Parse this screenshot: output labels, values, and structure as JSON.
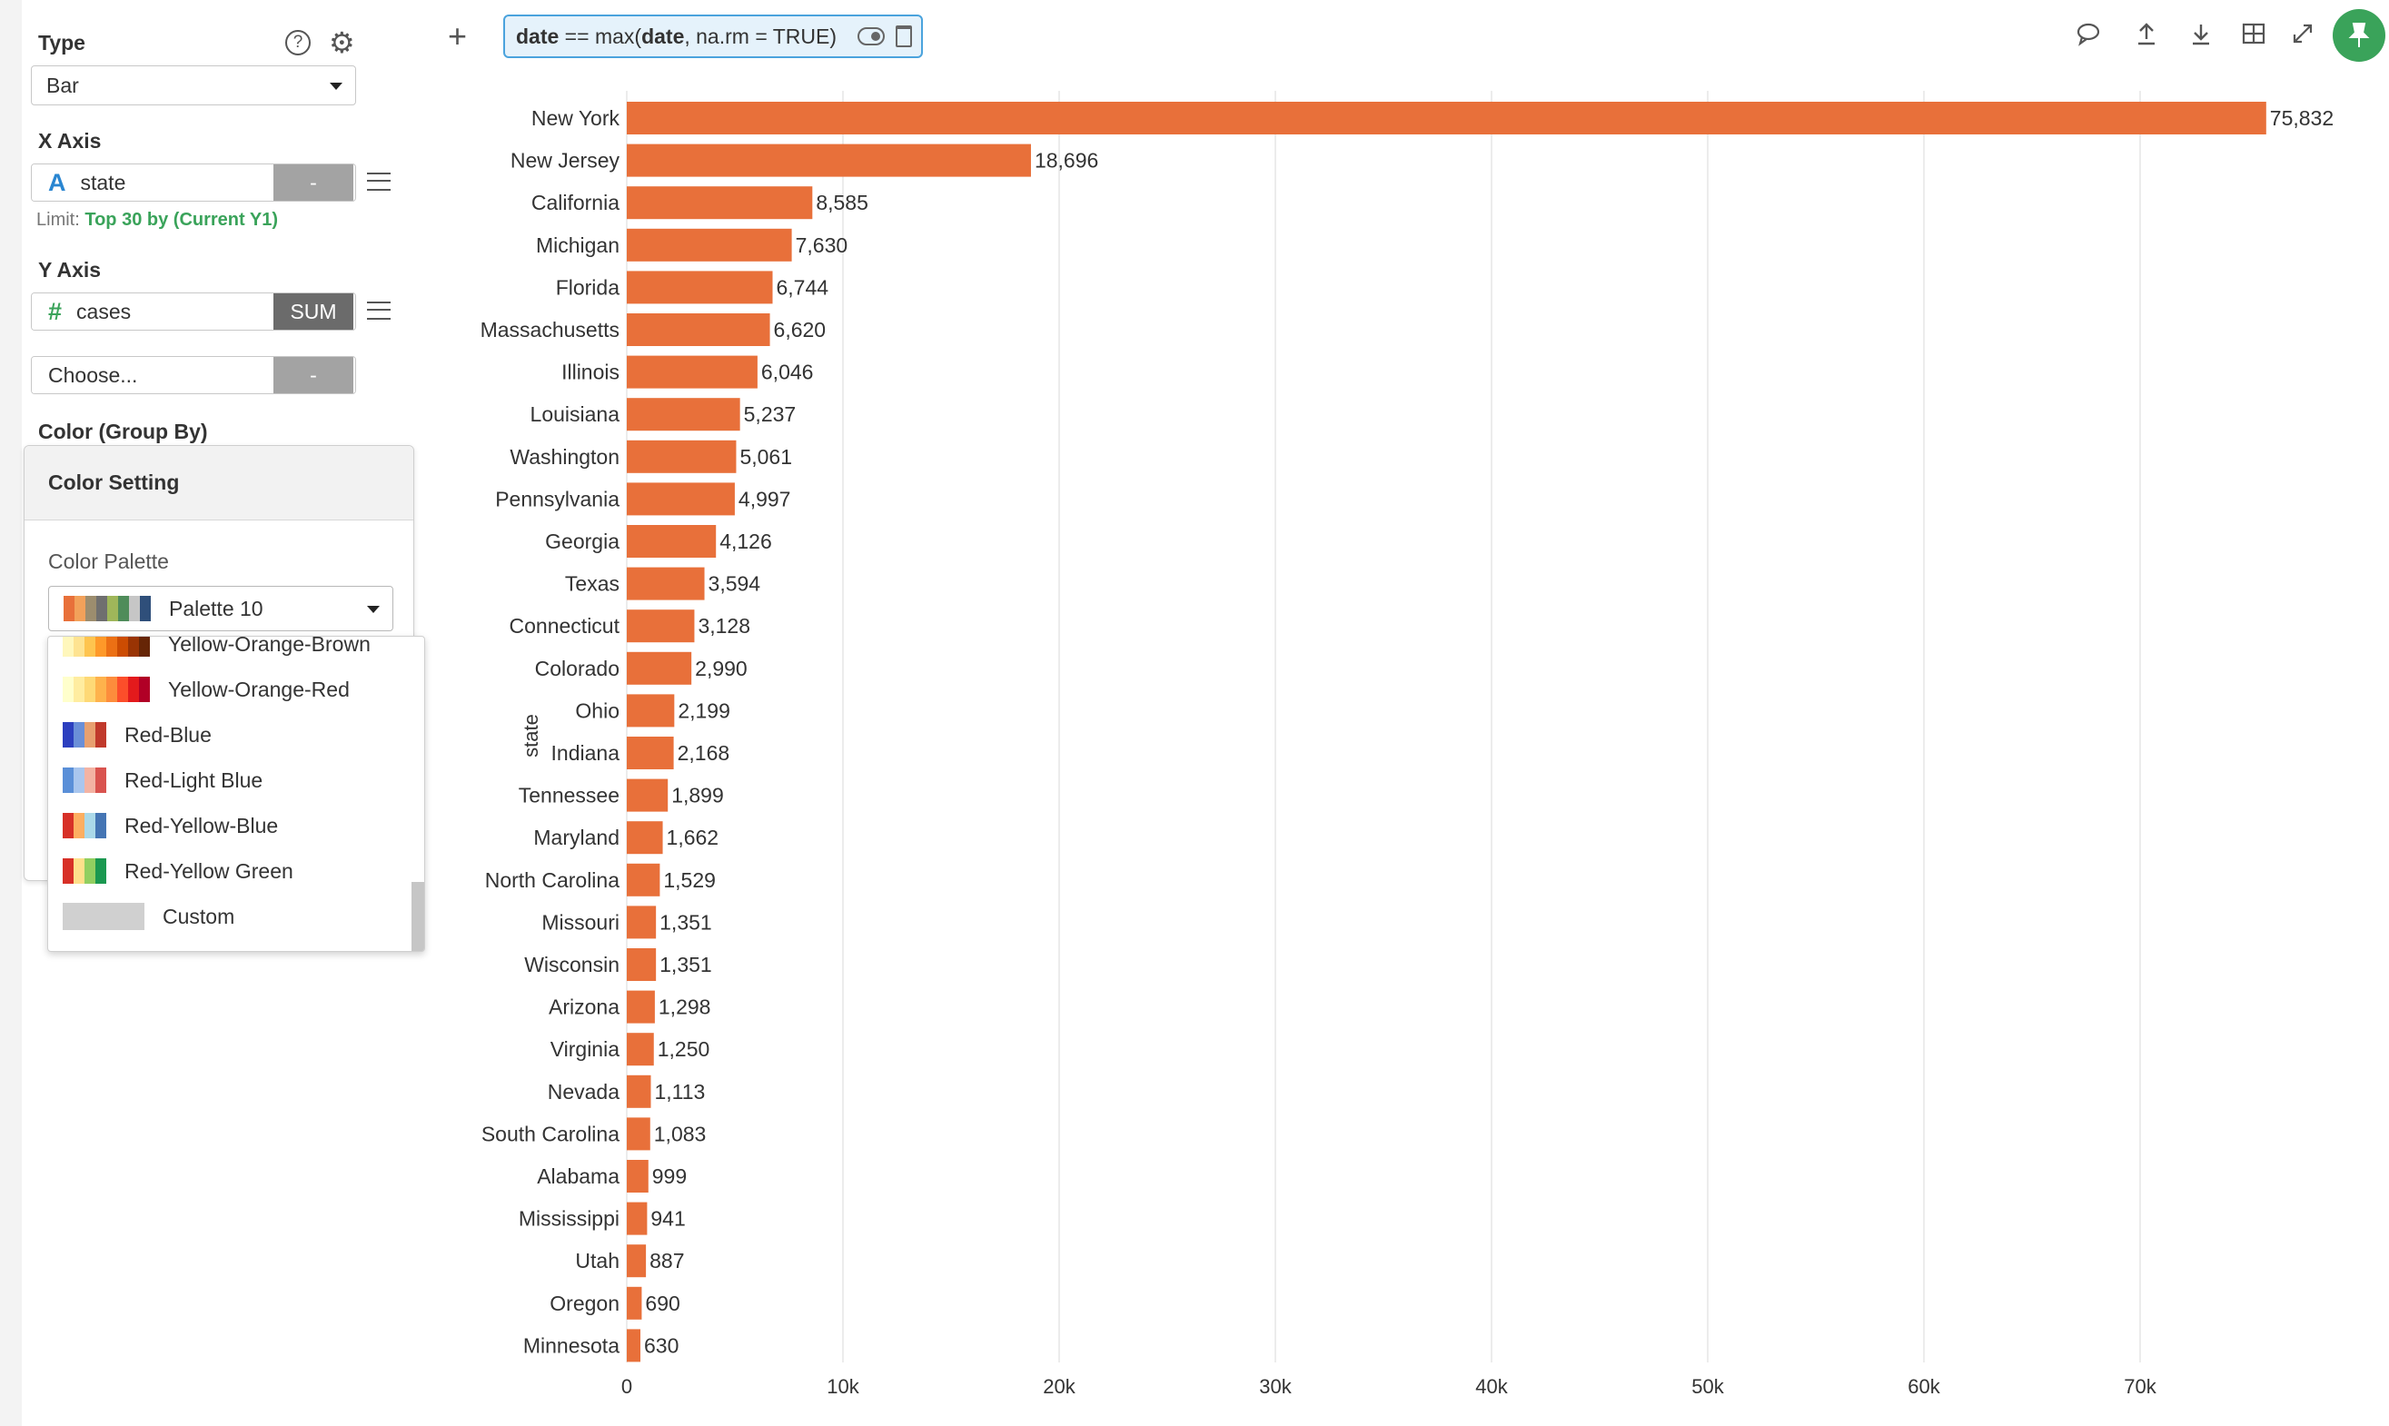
{
  "sidebar": {
    "type_title": "Type",
    "type_value": "Bar",
    "x_axis_title": "X Axis",
    "x_field": {
      "type_icon": "A",
      "name": "state",
      "agg": "-"
    },
    "x_limit_prefix": "Limit:",
    "x_limit_value": "Top 30 by (Current Y1)",
    "y_axis_title": "Y Axis",
    "y_field": {
      "type_icon": "#",
      "name": "cases",
      "agg": "SUM"
    },
    "y2_field": {
      "name": "Choose...",
      "agg": "-"
    },
    "color_title": "Color (Group By)"
  },
  "color_setting": {
    "header": "Color Setting",
    "palette_label": "Color Palette",
    "selected_palette": "Palette 10",
    "selected_swatch": [
      "#e8703a",
      "#f2a15a",
      "#9c8d6e",
      "#6f6f6f",
      "#9fb65a",
      "#4f8c5a",
      "#c6c6c6",
      "#2f4f7a"
    ],
    "options": [
      {
        "label": "Yellow-Orange-Brown",
        "swatch": [
          "#fff7bc",
          "#fee391",
          "#fec44f",
          "#fe9929",
          "#ec7014",
          "#cc4c02",
          "#993404",
          "#662506"
        ]
      },
      {
        "label": "Yellow-Orange-Red",
        "swatch": [
          "#ffffcc",
          "#ffeda0",
          "#fed976",
          "#feb24c",
          "#fd8d3c",
          "#fc4e2a",
          "#e31a1c",
          "#b10026"
        ]
      },
      {
        "label": "Red-Blue",
        "swatch": [
          "#2c3fbf",
          "#6a8fd8",
          "#e8a070",
          "#c0392b"
        ]
      },
      {
        "label": "Red-Light Blue",
        "swatch": [
          "#5a8fd8",
          "#a9c6ee",
          "#f3b3a3",
          "#d9534f"
        ]
      },
      {
        "label": "Red-Yellow-Blue",
        "swatch": [
          "#d73027",
          "#fdae61",
          "#abd9e9",
          "#4575b4"
        ]
      },
      {
        "label": "Red-Yellow Green",
        "swatch": [
          "#d73027",
          "#fee08b",
          "#91cf60",
          "#1a9850"
        ]
      },
      {
        "label": "Custom",
        "swatch": []
      }
    ]
  },
  "toolbar": {
    "filter_text_html": "date == max(date, na.rm = TRUE)",
    "filter_parts": [
      "date",
      " == max(",
      "date",
      ", na.rm = TRUE)"
    ]
  },
  "chart_data": {
    "type": "bar",
    "orientation": "horizontal",
    "ylabel": "state",
    "xlabel": "",
    "xlim": [
      0,
      80000
    ],
    "x_ticks": [
      0,
      10000,
      20000,
      30000,
      40000,
      50000,
      60000,
      70000
    ],
    "x_tick_labels": [
      "0",
      "10k",
      "20k",
      "30k",
      "40k",
      "50k",
      "60k",
      "70k"
    ],
    "bar_color": "#e8703a",
    "grid": true,
    "categories": [
      "New York",
      "New Jersey",
      "California",
      "Michigan",
      "Florida",
      "Massachusetts",
      "Illinois",
      "Louisiana",
      "Washington",
      "Pennsylvania",
      "Georgia",
      "Texas",
      "Connecticut",
      "Colorado",
      "Ohio",
      "Indiana",
      "Tennessee",
      "Maryland",
      "North Carolina",
      "Missouri",
      "Wisconsin",
      "Arizona",
      "Virginia",
      "Nevada",
      "South Carolina",
      "Alabama",
      "Mississippi",
      "Utah",
      "Oregon",
      "Minnesota"
    ],
    "values": [
      75832,
      18696,
      8585,
      7630,
      6744,
      6620,
      6046,
      5237,
      5061,
      4997,
      4126,
      3594,
      3128,
      2990,
      2199,
      2168,
      1899,
      1662,
      1529,
      1351,
      1351,
      1298,
      1250,
      1113,
      1083,
      999,
      941,
      887,
      690,
      630
    ],
    "value_labels": [
      "75,832",
      "18,696",
      "8,585",
      "7,630",
      "6,744",
      "6,620",
      "6,046",
      "5,237",
      "5,061",
      "4,997",
      "4,126",
      "3,594",
      "3,128",
      "2,990",
      "2,199",
      "2,168",
      "1,899",
      "1,662",
      "1,529",
      "1,351",
      "1,351",
      "1,298",
      "1,250",
      "1,113",
      "1,083",
      "999",
      "941",
      "887",
      "690",
      "630"
    ]
  }
}
